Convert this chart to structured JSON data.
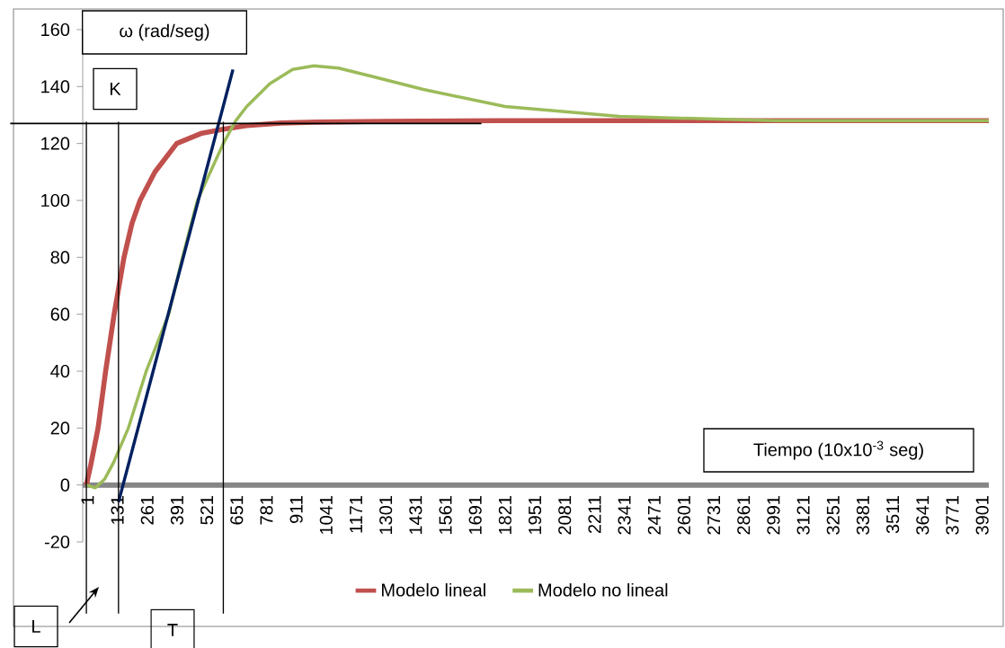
{
  "chart_data": {
    "type": "line",
    "xlabel": "Tiempo (10x10$^{-3}$ seg)",
    "ylabel": "ω (rad/seg)",
    "series": [
      {
        "name": "Modelo lineal",
        "color": "#c0504d",
        "x": [
          1,
          20,
          52,
          85,
          122,
          165,
          200,
          235,
          300,
          395,
          500,
          598,
          700,
          850,
          1000,
          1300,
          1800,
          2500,
          3200,
          3935
        ],
        "values": [
          0,
          7,
          20,
          40,
          60,
          80,
          92,
          100,
          110,
          120,
          123.5,
          125,
          126.3,
          127.2,
          127.5,
          127.8,
          128,
          128,
          128,
          128
        ]
      },
      {
        "name": "Modelo no lineal",
        "color": "#9bbb59",
        "x": [
          1,
          40,
          80,
          120,
          184,
          262,
          360,
          420,
          485,
          598,
          652,
          700,
          800,
          900,
          992,
          1100,
          1250,
          1470,
          1826,
          2325,
          2996,
          3500,
          3935
        ],
        "values": [
          0,
          -1,
          2,
          8,
          20,
          40,
          60,
          80,
          100,
          120,
          128,
          133,
          141,
          146,
          147.3,
          146.5,
          143.5,
          139,
          133,
          129.5,
          128,
          128,
          128
        ]
      },
      {
        "color": "#002060",
        "x": [
          141,
          640
        ],
        "values": [
          -6,
          146
        ]
      }
    ],
    "xlim": [
      -15,
      3935
    ],
    "xticks": [
      1,
      131,
      261,
      391,
      521,
      651,
      781,
      911,
      1041,
      1171,
      1301,
      1431,
      1561,
      1691,
      1821,
      1951,
      2081,
      2211,
      2341,
      2471,
      2601,
      2731,
      2861,
      2991,
      3121,
      3251,
      3381,
      3511,
      3641,
      3771,
      3901
    ],
    "ylim": [
      -20,
      160
    ],
    "yticks": [
      -20,
      0,
      20,
      40,
      60,
      80,
      100,
      120,
      140,
      160
    ],
    "ref_lines": [
      {
        "axis": "y",
        "value": 127,
        "color": "#000000"
      },
      {
        "axis": "x",
        "value": 1,
        "color": "#000000"
      },
      {
        "axis": "x",
        "value": 141,
        "color": "#000000"
      },
      {
        "axis": "x",
        "value": 598,
        "color": "#000000"
      }
    ],
    "annotations": [
      "K",
      "L",
      "T"
    ],
    "legend": "bottom",
    "marker": "none",
    "line_style": "solid"
  }
}
